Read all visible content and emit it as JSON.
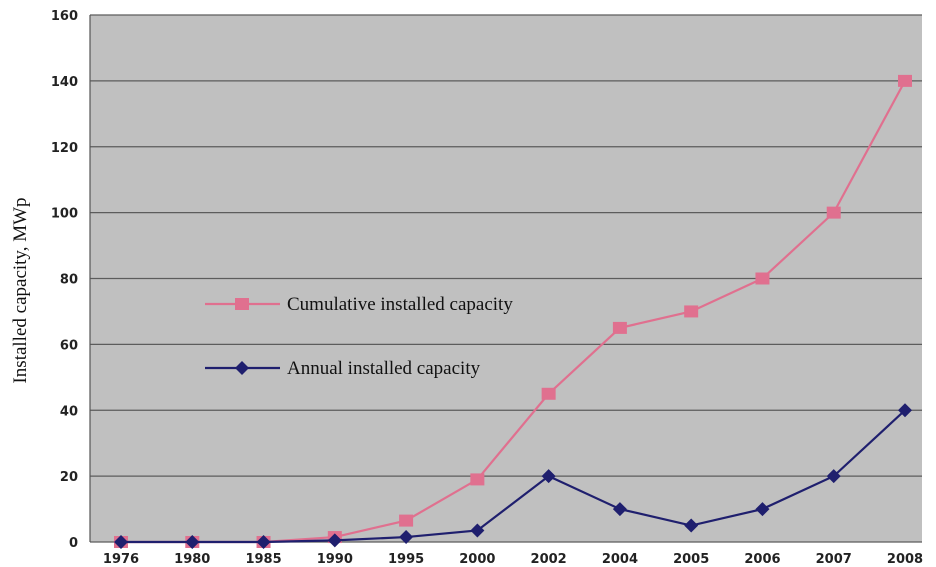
{
  "chart_data": {
    "type": "line",
    "categories": [
      "1976",
      "1980",
      "1985",
      "1990",
      "1995",
      "2000",
      "2002",
      "2004",
      "2005",
      "2006",
      "2007",
      "2008"
    ],
    "series": [
      {
        "name": "Cumulative installed capacity",
        "color": "#e0708f",
        "marker": "square",
        "values": [
          0,
          0,
          0,
          1.5,
          6.5,
          19,
          45,
          65,
          70,
          80,
          100,
          140
        ]
      },
      {
        "name": "Annual installed capacity",
        "color": "#1f1f6e",
        "marker": "diamond",
        "values": [
          0,
          0,
          0,
          0.5,
          1.5,
          3.5,
          20,
          10,
          5,
          10,
          20,
          40
        ]
      }
    ],
    "ylabel": "Installed capacity, MWp",
    "ylim": [
      0,
      160
    ],
    "yticks": [
      0,
      20,
      40,
      60,
      80,
      100,
      120,
      140,
      160
    ],
    "grid": true,
    "legend_position": "center-left",
    "plot_background": "#c0c0c0",
    "grid_color": "#5c5c5c"
  }
}
